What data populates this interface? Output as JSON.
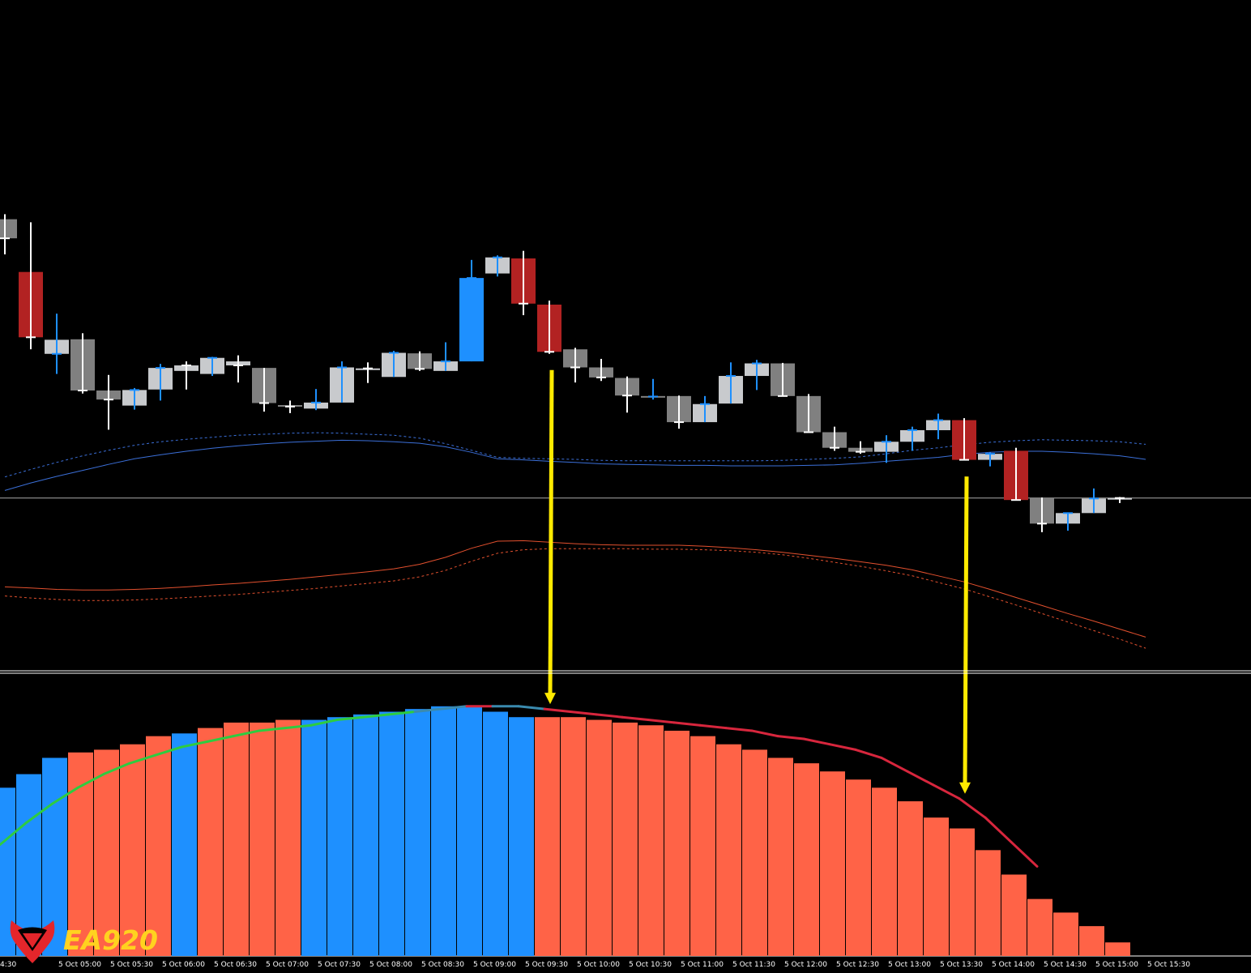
{
  "chart_data": [
    {
      "type": "candlestick",
      "panel": "price",
      "title": "",
      "grid": false,
      "background": "#000000",
      "candle_colors": {
        "bull_grey": "#C8CACD",
        "bear_grey": "#808080",
        "bull_signal": "#1E90FF",
        "bear_signal": "#B22222",
        "wick_default": "#FFFFFF",
        "wick_blue": "#1E90FF"
      },
      "ylim": [
        0,
        1000
      ],
      "candles": [
        {
          "o": 870,
          "h": 880,
          "l": 800,
          "c": 832,
          "style": "bear_grey",
          "wick": "wick_default"
        },
        {
          "o": 765,
          "h": 864,
          "l": 611,
          "c": 635,
          "style": "bear_signal",
          "wick": "wick_default"
        },
        {
          "o": 630,
          "h": 682,
          "l": 562,
          "c": 602,
          "style": "bull_grey",
          "wick": "wick_blue"
        },
        {
          "o": 631,
          "h": 643,
          "l": 523,
          "c": 529,
          "style": "bear_grey",
          "wick": "wick_default"
        },
        {
          "o": 529,
          "h": 560,
          "l": 451,
          "c": 511,
          "style": "bear_grey",
          "wick": "wick_default"
        },
        {
          "o": 499,
          "h": 534,
          "l": 491,
          "c": 530,
          "style": "bull_grey",
          "wick": "wick_blue"
        },
        {
          "o": 531,
          "h": 582,
          "l": 509,
          "c": 574,
          "style": "bull_grey",
          "wick": "wick_blue"
        },
        {
          "o": 568,
          "h": 587,
          "l": 531,
          "c": 579,
          "style": "bull_grey",
          "wick": "wick_default"
        },
        {
          "o": 562,
          "h": 596,
          "l": 558,
          "c": 594,
          "style": "bull_grey",
          "wick": "wick_blue"
        },
        {
          "o": 587,
          "h": 599,
          "l": 545,
          "c": 579,
          "style": "bull_grey",
          "wick": "wick_default"
        },
        {
          "o": 574,
          "h": 574,
          "l": 487,
          "c": 504,
          "style": "bear_grey",
          "wick": "wick_default"
        },
        {
          "o": 500,
          "h": 509,
          "l": 484,
          "c": 497,
          "style": "bear_grey",
          "wick": "wick_default"
        },
        {
          "o": 493,
          "h": 532,
          "l": 490,
          "c": 505,
          "style": "bull_grey",
          "wick": "wick_blue"
        },
        {
          "o": 505,
          "h": 587,
          "l": 505,
          "c": 575,
          "style": "bull_grey",
          "wick": "wick_blue"
        },
        {
          "o": 571,
          "h": 585,
          "l": 544,
          "c": 573,
          "style": "bull_grey",
          "wick": "wick_default"
        },
        {
          "o": 556,
          "h": 608,
          "l": 556,
          "c": 604,
          "style": "bull_grey",
          "wick": "wick_blue"
        },
        {
          "o": 603,
          "h": 607,
          "l": 568,
          "c": 572,
          "style": "bear_grey",
          "wick": "wick_default"
        },
        {
          "o": 568,
          "h": 625,
          "l": 568,
          "c": 587,
          "style": "bull_grey",
          "wick": "wick_blue"
        },
        {
          "o": 587,
          "h": 789,
          "l": 587,
          "c": 753,
          "style": "bull_signal",
          "wick": "wick_blue"
        },
        {
          "o": 762,
          "h": 798,
          "l": 756,
          "c": 794,
          "style": "bull_grey",
          "wick": "wick_blue"
        },
        {
          "o": 792,
          "h": 807,
          "l": 679,
          "c": 702,
          "style": "bear_signal",
          "wick": "wick_default"
        },
        {
          "o": 700,
          "h": 708,
          "l": 602,
          "c": 606,
          "style": "bear_signal",
          "wick": "wick_default"
        },
        {
          "o": 611,
          "h": 614,
          "l": 545,
          "c": 575,
          "style": "bear_grey",
          "wick": "wick_default"
        },
        {
          "o": 575,
          "h": 592,
          "l": 548,
          "c": 555,
          "style": "bear_grey",
          "wick": "wick_default"
        },
        {
          "o": 554,
          "h": 557,
          "l": 485,
          "c": 519,
          "style": "bear_grey",
          "wick": "wick_default"
        },
        {
          "o": 518,
          "h": 552,
          "l": 511,
          "c": 517,
          "style": "bear_grey",
          "wick": "wick_blue"
        },
        {
          "o": 518,
          "h": 519,
          "l": 453,
          "c": 466,
          "style": "bear_grey",
          "wick": "wick_default"
        },
        {
          "o": 466,
          "h": 518,
          "l": 466,
          "c": 502,
          "style": "bull_grey",
          "wick": "wick_blue"
        },
        {
          "o": 503,
          "h": 585,
          "l": 503,
          "c": 558,
          "style": "bull_grey",
          "wick": "wick_blue"
        },
        {
          "o": 558,
          "h": 590,
          "l": 530,
          "c": 583,
          "style": "bull_grey",
          "wick": "wick_blue"
        },
        {
          "o": 583,
          "h": 584,
          "l": 518,
          "c": 518,
          "style": "bear_grey",
          "wick": "wick_default"
        },
        {
          "o": 518,
          "h": 522,
          "l": 448,
          "c": 446,
          "style": "bear_grey",
          "wick": "wick_default"
        },
        {
          "o": 446,
          "h": 457,
          "l": 409,
          "c": 415,
          "style": "bear_grey",
          "wick": "wick_default"
        },
        {
          "o": 415,
          "h": 428,
          "l": 403,
          "c": 407,
          "style": "bear_grey",
          "wick": "wick_default"
        },
        {
          "o": 407,
          "h": 440,
          "l": 385,
          "c": 427,
          "style": "bull_grey",
          "wick": "wick_blue"
        },
        {
          "o": 427,
          "h": 457,
          "l": 409,
          "c": 450,
          "style": "bull_grey",
          "wick": "wick_blue"
        },
        {
          "o": 450,
          "h": 483,
          "l": 432,
          "c": 470,
          "style": "bull_grey",
          "wick": "wick_blue"
        },
        {
          "o": 470,
          "h": 474,
          "l": 390,
          "c": 391,
          "style": "bear_signal",
          "wick": "wick_default"
        },
        {
          "o": 391,
          "h": 406,
          "l": 378,
          "c": 403,
          "style": "bull_grey",
          "wick": "wick_blue"
        },
        {
          "o": 409,
          "h": 415,
          "l": 311,
          "c": 311,
          "style": "bear_signal",
          "wick": "wick_default"
        },
        {
          "o": 316,
          "h": 316,
          "l": 247,
          "c": 264,
          "style": "bear_grey",
          "wick": "wick_default"
        },
        {
          "o": 264,
          "h": 284,
          "l": 250,
          "c": 285,
          "style": "bull_grey",
          "wick": "wick_blue"
        },
        {
          "o": 285,
          "h": 334,
          "l": 285,
          "c": 314,
          "style": "bull_grey",
          "wick": "wick_blue"
        },
        {
          "o": 315,
          "h": 317,
          "l": 305,
          "c": 315,
          "style": "bull_grey",
          "wick": "wick_default"
        }
      ],
      "bands": [
        {
          "name": "upper_solid",
          "color": "#3B6FD8",
          "dash": "none",
          "values": [
            330,
            345,
            358,
            370,
            382,
            393,
            401,
            408,
            414,
            419,
            423,
            426,
            428,
            430,
            429,
            427,
            424,
            417,
            406,
            393,
            391,
            388,
            386,
            383,
            382,
            381,
            380,
            380,
            379,
            379,
            379,
            380,
            381,
            384,
            388,
            392,
            396,
            402,
            406,
            408,
            408,
            406,
            403,
            399,
            392
          ]
        },
        {
          "name": "upper_dotted",
          "color": "#3B6FD8",
          "dash": "3,3",
          "values": [
            357,
            372,
            386,
            399,
            410,
            420,
            427,
            432,
            436,
            440,
            442,
            444,
            445,
            444,
            442,
            440,
            434,
            423,
            410,
            396,
            394,
            393,
            392,
            390,
            389,
            389,
            389,
            389,
            389,
            389,
            390,
            392,
            394,
            397,
            403,
            410,
            415,
            421,
            426,
            429,
            431,
            430,
            429,
            427,
            422
          ]
        },
        {
          "name": "lower_solid",
          "color": "#E2502E",
          "dash": "none",
          "values": [
            138,
            136,
            133,
            132,
            132,
            133,
            135,
            138,
            142,
            145,
            149,
            153,
            158,
            163,
            168,
            174,
            183,
            197,
            215,
            229,
            230,
            227,
            224,
            222,
            221,
            221,
            221,
            219,
            216,
            212,
            207,
            201,
            195,
            188,
            181,
            172,
            160,
            148,
            133,
            117,
            101,
            85,
            70,
            54,
            38
          ]
        },
        {
          "name": "lower_dotted",
          "color": "#E2502E",
          "dash": "3,3",
          "values": [
            120,
            116,
            113,
            111,
            111,
            112,
            114,
            117,
            120,
            123,
            127,
            131,
            135,
            140,
            145,
            150,
            158,
            171,
            189,
            205,
            212,
            214,
            214,
            214,
            214,
            213,
            213,
            212,
            210,
            207,
            202,
            195,
            187,
            179,
            170,
            160,
            147,
            134,
            118,
            102,
            85,
            68,
            51,
            34,
            16
          ]
        }
      ],
      "signal_arrows": [
        {
          "candle": 21,
          "direction": "down",
          "color": "#FFEA00"
        },
        {
          "candle": 37,
          "direction": "down",
          "color": "#FFEA00"
        }
      ],
      "horizontal_line": {
        "value": 315,
        "color": "#AAAAAA"
      }
    },
    {
      "type": "bar",
      "panel": "indicator",
      "title": "",
      "grid": false,
      "ylim": [
        0,
        100
      ],
      "bar_colors": {
        "up": "#1E90FF",
        "down": "#FF6347"
      },
      "values": [
        62,
        67,
        73,
        75,
        76,
        78,
        81,
        82,
        84,
        86,
        86,
        87,
        87,
        88,
        89,
        90,
        91,
        92,
        92,
        90,
        88,
        88,
        88,
        87,
        86,
        85,
        83,
        81,
        78,
        76,
        73,
        71,
        68,
        65,
        62,
        57,
        51,
        47,
        39,
        30,
        21,
        16,
        11,
        5
      ],
      "colors": [
        "up",
        "up",
        "up",
        "down",
        "down",
        "down",
        "down",
        "up",
        "down",
        "down",
        "down",
        "down",
        "up",
        "up",
        "up",
        "up",
        "up",
        "up",
        "up",
        "up",
        "up",
        "down",
        "down",
        "down",
        "down",
        "down",
        "down",
        "down",
        "down",
        "down",
        "down",
        "down",
        "down",
        "down",
        "down",
        "down",
        "down",
        "down",
        "down",
        "down",
        "down",
        "down",
        "down",
        "down"
      ],
      "signal_line": {
        "values": [
          41,
          49,
          56,
          62,
          67,
          71,
          74,
          77,
          79,
          81,
          83,
          84,
          85,
          87,
          88,
          89,
          90,
          91,
          92,
          92,
          92,
          91,
          90,
          89,
          88,
          87,
          86,
          85,
          84,
          83,
          81,
          80,
          78,
          76,
          73,
          68,
          63,
          58,
          51,
          42,
          33
        ],
        "segment_colors": [
          "green",
          "green",
          "green",
          "green",
          "green",
          "green",
          "green",
          "green",
          "green",
          "green",
          "green",
          "green",
          "green",
          "green",
          "green",
          "green",
          "teal",
          "teal",
          "red",
          "teal",
          "teal",
          "red",
          "red",
          "red",
          "red",
          "red",
          "red",
          "red",
          "red",
          "red",
          "red",
          "red",
          "red",
          "red",
          "red",
          "red",
          "red",
          "red",
          "red",
          "red",
          "red"
        ],
        "palette": {
          "green": "#2ECC40",
          "teal": "#3A8AAE",
          "red": "#D7263D"
        }
      },
      "x_tick_labels": [
        "4:30",
        "5 Oct 05:00",
        "5 Oct 05:30",
        "5 Oct 06:00",
        "5 Oct 06:30",
        "5 Oct 07:00",
        "5 Oct 07:30",
        "5 Oct 08:00",
        "5 Oct 08:30",
        "5 Oct 09:00",
        "5 Oct 09:30",
        "5 Oct 10:00",
        "5 Oct 10:30",
        "5 Oct 11:00",
        "5 Oct 11:30",
        "5 Oct 12:00",
        "5 Oct 12:30",
        "5 Oct 13:00",
        "5 Oct 13:30",
        "5 Oct 14:00",
        "5 Oct 14:30",
        "5 Oct 15:00",
        "5 Oct 15:30"
      ]
    }
  ],
  "watermark": {
    "text": "EA920",
    "color": "#FFD21F",
    "icon_color": "#E4262B"
  }
}
